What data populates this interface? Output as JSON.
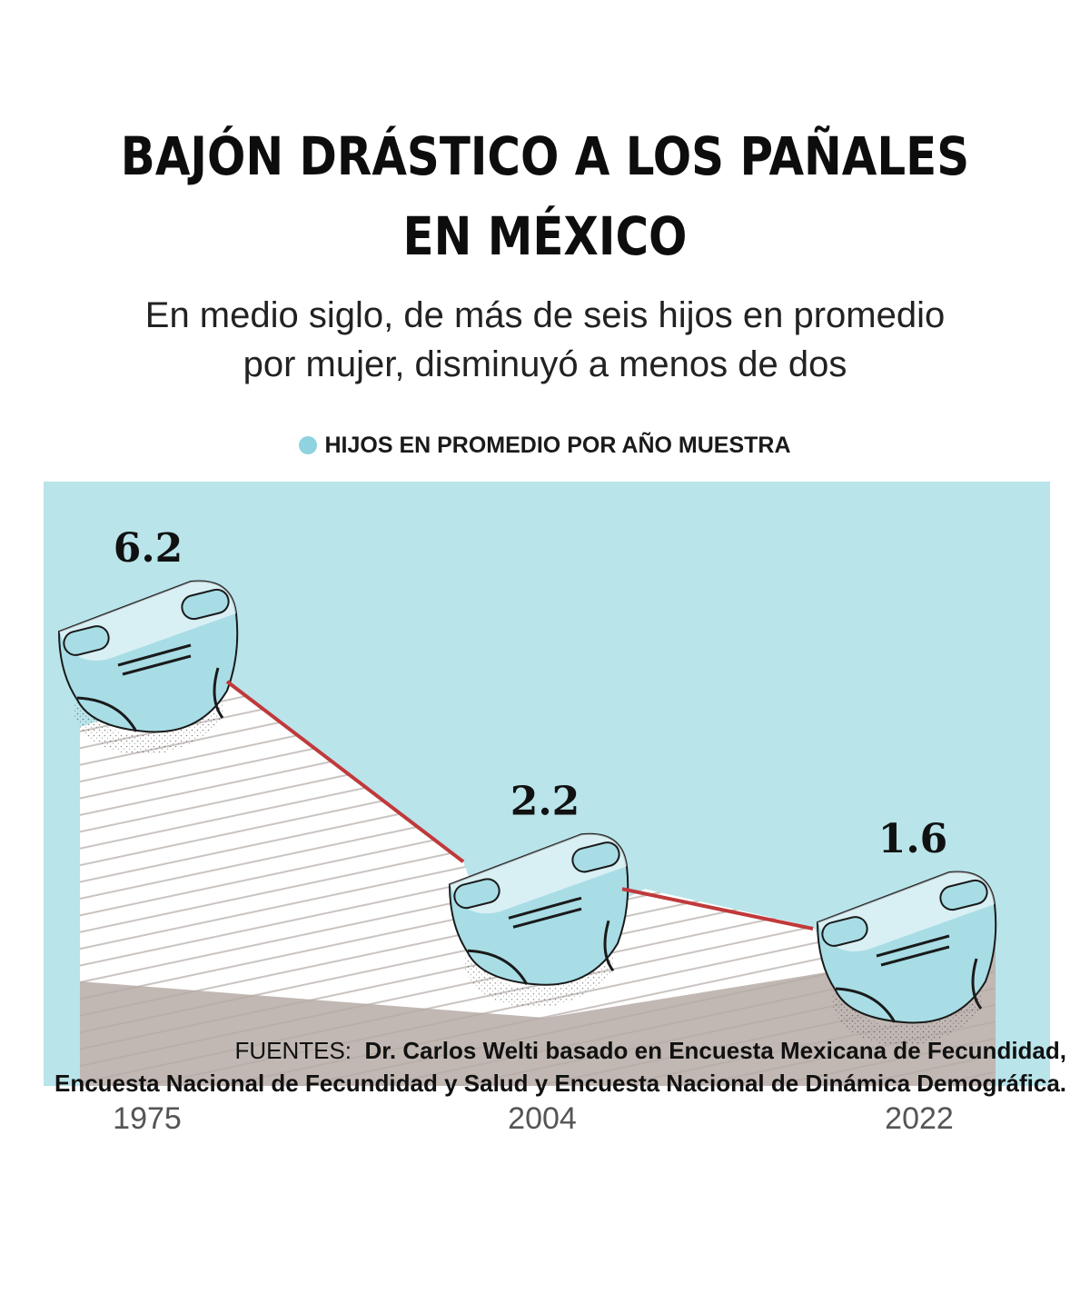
{
  "title_line1": "BAJÓN DRÁSTICO A LOS PAÑALES",
  "title_line2": "EN MÉXICO",
  "subtitle_line1": "En medio siglo, de más de seis hijos en promedio",
  "subtitle_line2": "por mujer, disminuyó a menos de dos",
  "legend_label": "HIJOS EN PROMEDIO POR AÑO MUESTRA",
  "source_label": "FUENTES:",
  "source_line1": "Dr. Carlos Welti basado en Encuesta Mexicana de Fecundidad,",
  "source_line2": "Encuesta Nacional de Fecundidad y Salud y Encuesta Nacional de Dinámica Demográfica.",
  "colors": {
    "background_panel": "#b8e4ea",
    "legend_dot": "#8fd3e0",
    "diaper": "#a8dde6",
    "line": "#c0393b",
    "ground": "#b6aca6"
  },
  "chart_data": {
    "type": "line",
    "title": "BAJÓN DRÁSTICO A LOS PAÑALES EN MÉXICO",
    "categories": [
      "1975",
      "2004",
      "2022"
    ],
    "series": [
      {
        "name": "HIJOS EN PROMEDIO POR AÑO MUESTRA",
        "values": [
          6.2,
          2.2,
          1.6
        ],
        "labels": [
          "6.2",
          "2.2",
          "1.6"
        ]
      }
    ],
    "xlabel": "",
    "ylabel": "",
    "ylim": [
      0,
      7
    ],
    "grid": false,
    "legend": "top-center"
  }
}
